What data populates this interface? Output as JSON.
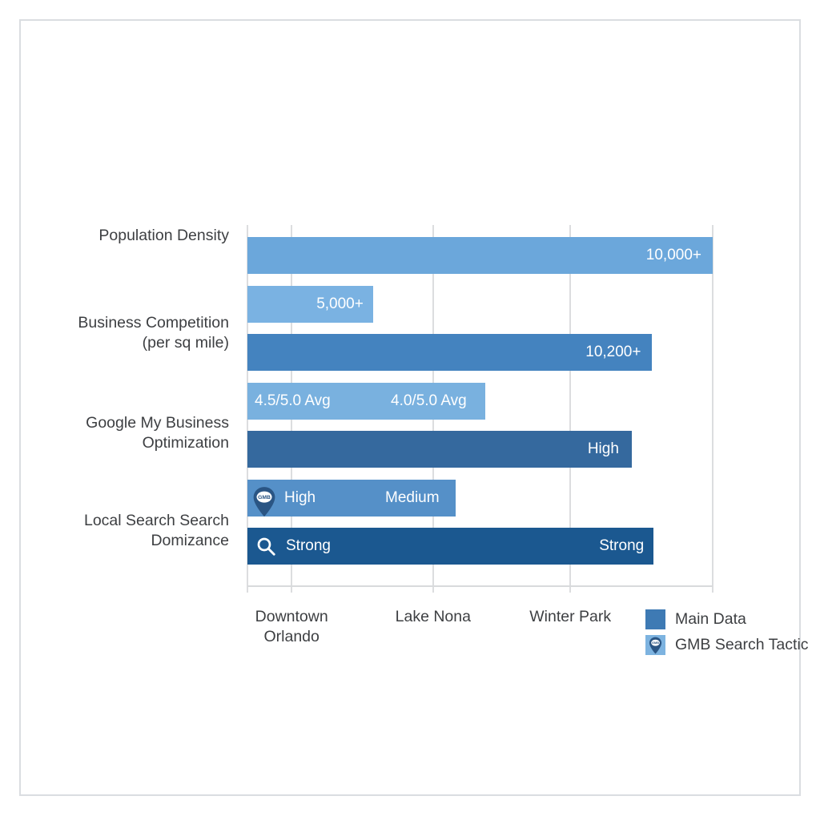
{
  "chart_data": {
    "type": "bar",
    "orientation": "horizontal",
    "title": "",
    "xlabel": "",
    "ylabel": "",
    "grid": true,
    "legend_position": "bottom-right",
    "categories": [
      {
        "lines": [
          "Population Density"
        ]
      },
      {
        "lines": [
          "Business Competition",
          "(per sq mile)"
        ]
      },
      {
        "lines": [
          "Google My Business",
          "Optimization"
        ]
      },
      {
        "lines": [
          "Local Search Search",
          "Domizance"
        ]
      }
    ],
    "x_tick_labels": [
      {
        "lines": [
          "Downtown",
          "Orlando"
        ],
        "pos_pct": 9.5
      },
      {
        "lines": [
          "Lake Nona"
        ],
        "pos_pct": 39.9
      },
      {
        "lines": [
          "Winter Park"
        ],
        "pos_pct": 69.4
      }
    ],
    "gridlines_pct": [
      0,
      9.5,
      39.9,
      69.4,
      100
    ],
    "bars": [
      {
        "name": "population-density-main",
        "category": "Population Density",
        "series": "Main Data",
        "width_pct": 100,
        "color": "#6ba7db",
        "labels": [
          {
            "text": "10,000+",
            "align": "right",
            "offset": 14
          }
        ]
      },
      {
        "name": "population-density-gmb",
        "category": "Population Density",
        "series": "GMB Search Tactic",
        "width_pct": 27,
        "color": "#7ab2e2",
        "labels": [
          {
            "text": "5,000+",
            "align": "right",
            "offset": 12
          }
        ]
      },
      {
        "name": "business-competition-main",
        "category": "Business Competition (per sq mile)",
        "series": "Main Data",
        "width_pct": 87,
        "color": "#4483bf",
        "labels": [
          {
            "text": "10,200+",
            "align": "right",
            "offset": 14
          }
        ]
      },
      {
        "name": "business-competition-gmb",
        "category": "Business Competition (per sq mile)",
        "series": "GMB Search Tactic",
        "width_pct": 51.2,
        "color": "#79b1df",
        "labels": [
          {
            "text": "4.5/5.0 Avg",
            "align": "left",
            "offset": 9
          },
          {
            "text": "4.0/5.0 Avg",
            "align": "left",
            "offset": 179
          }
        ]
      },
      {
        "name": "gmb-optimization-main",
        "category": "Google My Business Optimization",
        "series": "Main Data",
        "width_pct": 82.6,
        "color": "#35699e",
        "labels": [
          {
            "text": "High",
            "align": "right",
            "offset": 16
          }
        ]
      },
      {
        "name": "gmb-optimization-gmb",
        "category": "Google My Business Optimization",
        "series": "GMB Search Tactic",
        "width_pct": 44.8,
        "color": "#5590c8",
        "icon": "gmb-pin",
        "labels": [
          {
            "text": "High",
            "align": "left",
            "offset": 46
          },
          {
            "text": "Medium",
            "align": "left",
            "offset": 172
          }
        ]
      },
      {
        "name": "local-search-dominance-main",
        "category": "Local Search Search Domizance",
        "series": "Main Data",
        "width_pct": 87.3,
        "color": "#1b5890",
        "icon": "search",
        "labels": [
          {
            "text": "Strong",
            "align": "left",
            "offset": 48
          },
          {
            "text": "Strong",
            "align": "right",
            "offset": 12
          }
        ]
      }
    ],
    "legend": [
      {
        "label": "Main Data",
        "swatch_color": "#3e7ab4",
        "icon": null
      },
      {
        "label": "GMB Search Tactic",
        "swatch_color": "#7db3e0",
        "icon": "gmb-pin"
      }
    ],
    "gmb_pin_text": "GMB",
    "colors": {
      "pin_dark_blue": "#2a5584",
      "gridline": "#dcdddf",
      "axis_text": "#3d3f42",
      "bar_value_text": "#ffffff"
    }
  }
}
